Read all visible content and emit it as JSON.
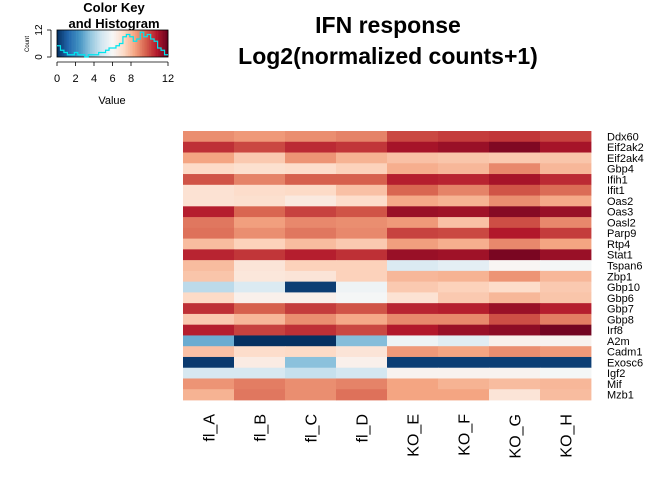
{
  "chart_data": {
    "type": "heatmap",
    "title_line1": "IFN response",
    "title_line2": "Log2(normalized counts+1)",
    "columns": [
      "fl_A",
      "fl_B",
      "fl_C",
      "fl_D",
      "KO_E",
      "KO_F",
      "KO_G",
      "KO_H"
    ],
    "rows": [
      "Ddx60",
      "Eif2ak2",
      "Eif2ak4",
      "Gbp4",
      "Ifih1",
      "Ifit1",
      "Oas2",
      "Oas3",
      "Oasl2",
      "Parp9",
      "Rtp4",
      "Stat1",
      "Tspan6",
      "Zbp1",
      "Gbp10",
      "Gbp6",
      "Gbp7",
      "Gbp8",
      "Irf8",
      "A2m",
      "Cadm1",
      "Exosc6",
      "Igf2",
      "Mif",
      "Mzb1"
    ],
    "values": [
      [
        8.8,
        8.6,
        8.8,
        9.0,
        10.0,
        10.2,
        10.3,
        10.1
      ],
      [
        10.4,
        10.0,
        10.5,
        10.3,
        11.0,
        11.2,
        11.6,
        11.0
      ],
      [
        8.4,
        7.6,
        8.7,
        8.1,
        7.8,
        7.7,
        7.6,
        7.7
      ],
      [
        7.2,
        7.0,
        7.1,
        7.4,
        8.2,
        8.0,
        8.9,
        8.0
      ],
      [
        9.8,
        9.0,
        9.6,
        9.6,
        10.7,
        10.6,
        11.0,
        10.5
      ],
      [
        6.9,
        7.1,
        7.2,
        7.8,
        9.5,
        9.0,
        9.8,
        9.4
      ],
      [
        6.9,
        7.0,
        6.6,
        7.1,
        8.3,
        8.1,
        8.8,
        8.3
      ],
      [
        10.7,
        9.5,
        10.1,
        9.8,
        11.2,
        11.1,
        11.5,
        11.2
      ],
      [
        9.2,
        8.5,
        8.9,
        8.8,
        8.6,
        7.8,
        9.9,
        8.9
      ],
      [
        9.3,
        8.8,
        9.2,
        8.9,
        10.1,
        10.0,
        10.8,
        10.2
      ],
      [
        7.9,
        7.4,
        7.9,
        7.6,
        8.5,
        8.2,
        8.9,
        8.4
      ],
      [
        10.6,
        10.3,
        10.7,
        10.4,
        11.2,
        11.1,
        11.7,
        11.2
      ],
      [
        7.9,
        6.8,
        7.4,
        7.4,
        5.1,
        5.4,
        6.1,
        5.9
      ],
      [
        7.7,
        6.7,
        6.8,
        7.4,
        8.0,
        8.1,
        8.7,
        8.0
      ],
      [
        4.4,
        5.1,
        0.3,
        5.7,
        7.6,
        7.4,
        7.1,
        7.6
      ],
      [
        7.2,
        6.3,
        6.3,
        5.9,
        6.9,
        7.6,
        8.0,
        7.7
      ],
      [
        10.4,
        9.6,
        10.2,
        9.8,
        10.6,
        10.7,
        11.2,
        10.7
      ],
      [
        7.6,
        8.0,
        8.8,
        8.3,
        8.9,
        8.9,
        9.9,
        9.1
      ],
      [
        10.7,
        10.1,
        10.4,
        10.0,
        10.8,
        11.2,
        11.4,
        11.8
      ],
      [
        3.0,
        0.0,
        0.0,
        3.4,
        5.7,
        5.3,
        6.3,
        6.2
      ],
      [
        7.8,
        7.1,
        7.2,
        6.8,
        8.6,
        8.4,
        8.8,
        8.6
      ],
      [
        0.2,
        6.5,
        3.5,
        6.3,
        0.3,
        0.3,
        0.3,
        0.3
      ],
      [
        5.0,
        5.0,
        4.6,
        4.9,
        6.2,
        6.2,
        6.2,
        5.9
      ],
      [
        8.7,
        9.1,
        8.8,
        9.0,
        8.4,
        8.1,
        7.9,
        8.0
      ],
      [
        8.1,
        9.2,
        8.8,
        9.3,
        8.4,
        8.4,
        6.8,
        7.9
      ]
    ],
    "value_range": [
      0,
      12
    ],
    "colors": [
      "#053061",
      "#2166AC",
      "#4393C3",
      "#92C5DE",
      "#D1E5F0",
      "#F7F7F7",
      "#FDDBC7",
      "#F4A582",
      "#D6604D",
      "#B2182B",
      "#67001F"
    ],
    "color_key": {
      "title_line1": "Color Key",
      "title_line2": "and Histogram",
      "xlabel": "Value",
      "ylabel": "Count",
      "x_ticks": [
        "0",
        "2",
        "4",
        "6",
        "8",
        "12"
      ],
      "x_tick_values": [
        0,
        2,
        4,
        6,
        8,
        12
      ],
      "y_ticks": [
        "0",
        "12"
      ],
      "y_tick_values": [
        0,
        12
      ],
      "histogram_counts": [
        5,
        3,
        2,
        1,
        1,
        2,
        1,
        1,
        0,
        1,
        1,
        1,
        2,
        2,
        3,
        4,
        4,
        5,
        6,
        9,
        10,
        9,
        7,
        8,
        11,
        9,
        10,
        8,
        7,
        4,
        3,
        1
      ],
      "histogram_color": "#00E5EE"
    }
  }
}
